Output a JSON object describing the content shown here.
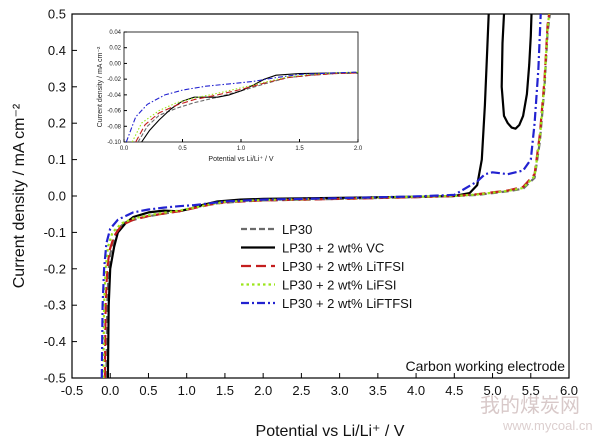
{
  "chart_data": [
    {
      "type": "line",
      "title": "",
      "xlabel": "Potential vs Li/Li⁺ / V",
      "ylabel": "Current density / mA cm⁻²",
      "xlim": [
        -0.5,
        6.0
      ],
      "ylim": [
        -0.5,
        0.5
      ],
      "xticks": [
        "-0.5",
        "0.0",
        "0.5",
        "1.0",
        "1.5",
        "2.0",
        "2.5",
        "3.0",
        "3.5",
        "4.0",
        "4.5",
        "5.0",
        "5.5",
        "6.0"
      ],
      "yticks": [
        "-0.5",
        "-0.4",
        "-0.3",
        "-0.2",
        "-0.1",
        "0.0",
        "0.1",
        "0.2",
        "0.3",
        "0.4",
        "0.5"
      ],
      "legend_position": "center-right",
      "annotation": "Carbon working electrode",
      "series": [
        {
          "name": "LP30",
          "color": "#6b6b6b",
          "dash": "dash",
          "points": [
            [
              -0.05,
              -0.5
            ],
            [
              -0.04,
              -0.3
            ],
            [
              -0.02,
              -0.2
            ],
            [
              0.0,
              -0.16
            ],
            [
              0.05,
              -0.12
            ],
            [
              0.1,
              -0.09
            ],
            [
              0.2,
              -0.072
            ],
            [
              0.4,
              -0.06
            ],
            [
              0.6,
              -0.052
            ],
            [
              0.8,
              -0.045
            ],
            [
              1.0,
              -0.037
            ],
            [
              1.2,
              -0.027
            ],
            [
              1.4,
              -0.02
            ],
            [
              1.7,
              -0.015
            ],
            [
              2.0,
              -0.012
            ],
            [
              3.0,
              -0.008
            ],
            [
              4.0,
              -0.003
            ],
            [
              4.5,
              0.0
            ],
            [
              4.8,
              0.003
            ],
            [
              5.0,
              0.008
            ],
            [
              5.2,
              0.013
            ],
            [
              5.4,
              0.02
            ],
            [
              5.55,
              0.05
            ],
            [
              5.62,
              0.15
            ],
            [
              5.68,
              0.3
            ],
            [
              5.72,
              0.45
            ],
            [
              5.75,
              0.5
            ]
          ]
        },
        {
          "name": "LP30 + 2 wt% VC",
          "color": "#000000",
          "dash": "solid",
          "points": [
            [
              -0.03,
              -0.5
            ],
            [
              -0.02,
              -0.3
            ],
            [
              0.0,
              -0.2
            ],
            [
              0.05,
              -0.14
            ],
            [
              0.1,
              -0.1
            ],
            [
              0.2,
              -0.075
            ],
            [
              0.3,
              -0.058
            ],
            [
              0.5,
              -0.045
            ],
            [
              0.7,
              -0.04
            ],
            [
              0.9,
              -0.042
            ],
            [
              1.05,
              -0.035
            ],
            [
              1.2,
              -0.025
            ],
            [
              1.4,
              -0.015
            ],
            [
              1.7,
              -0.01
            ],
            [
              2.0,
              -0.008
            ],
            [
              3.0,
              -0.005
            ],
            [
              4.0,
              -0.002
            ],
            [
              4.5,
              0.0
            ],
            [
              4.7,
              0.008
            ],
            [
              4.8,
              0.03
            ],
            [
              4.86,
              0.1
            ],
            [
              4.9,
              0.25
            ],
            [
              4.93,
              0.4
            ],
            [
              4.95,
              0.5
            ]
          ]
        },
        {
          "name": "LP30 + 2 wt% VC",
          "color": "#000000",
          "dash": "solid",
          "points": [
            [
              5.15,
              0.5
            ],
            [
              5.13,
              0.42
            ],
            [
              5.12,
              0.3
            ],
            [
              5.15,
              0.22
            ],
            [
              5.2,
              0.2
            ],
            [
              5.25,
              0.188
            ],
            [
              5.3,
              0.185
            ],
            [
              5.35,
              0.195
            ],
            [
              5.4,
              0.22
            ],
            [
              5.45,
              0.28
            ],
            [
              5.48,
              0.36
            ],
            [
              5.5,
              0.44
            ],
            [
              5.51,
              0.5
            ]
          ]
        },
        {
          "name": "LP30 + 2 wt% LiTFSI",
          "color": "#c41e1e",
          "dash": "longdash",
          "points": [
            [
              -0.07,
              -0.5
            ],
            [
              -0.06,
              -0.3
            ],
            [
              -0.04,
              -0.2
            ],
            [
              -0.01,
              -0.15
            ],
            [
              0.05,
              -0.11
            ],
            [
              0.15,
              -0.08
            ],
            [
              0.3,
              -0.065
            ],
            [
              0.5,
              -0.055
            ],
            [
              0.7,
              -0.048
            ],
            [
              0.9,
              -0.042
            ],
            [
              1.1,
              -0.033
            ],
            [
              1.3,
              -0.024
            ],
            [
              1.5,
              -0.017
            ],
            [
              2.0,
              -0.012
            ],
            [
              3.0,
              -0.008
            ],
            [
              4.0,
              -0.003
            ],
            [
              4.5,
              0.0
            ],
            [
              4.8,
              0.005
            ],
            [
              5.0,
              0.01
            ],
            [
              5.2,
              0.015
            ],
            [
              5.4,
              0.025
            ],
            [
              5.55,
              0.06
            ],
            [
              5.62,
              0.17
            ],
            [
              5.68,
              0.32
            ],
            [
              5.72,
              0.47
            ],
            [
              5.74,
              0.5
            ]
          ]
        },
        {
          "name": "LP30 + 2 wt% LiFSI",
          "color": "#9be51a",
          "dash": "dot",
          "points": [
            [
              -0.09,
              -0.5
            ],
            [
              -0.08,
              -0.3
            ],
            [
              -0.06,
              -0.2
            ],
            [
              -0.03,
              -0.14
            ],
            [
              0.03,
              -0.1
            ],
            [
              0.15,
              -0.075
            ],
            [
              0.3,
              -0.062
            ],
            [
              0.5,
              -0.053
            ],
            [
              0.7,
              -0.046
            ],
            [
              0.9,
              -0.04
            ],
            [
              1.1,
              -0.032
            ],
            [
              1.3,
              -0.023
            ],
            [
              1.5,
              -0.016
            ],
            [
              2.0,
              -0.011
            ],
            [
              3.0,
              -0.007
            ],
            [
              4.0,
              -0.002
            ],
            [
              4.5,
              0.0
            ],
            [
              4.8,
              0.004
            ],
            [
              5.0,
              0.009
            ],
            [
              5.2,
              0.014
            ],
            [
              5.4,
              0.022
            ],
            [
              5.55,
              0.055
            ],
            [
              5.62,
              0.16
            ],
            [
              5.68,
              0.31
            ],
            [
              5.72,
              0.46
            ],
            [
              5.74,
              0.5
            ]
          ]
        },
        {
          "name": "LP30 + 2 wt% LiFTFSI",
          "color": "#2222d0",
          "dash": "dashdot",
          "points": [
            [
              -0.11,
              -0.5
            ],
            [
              -0.1,
              -0.3
            ],
            [
              -0.08,
              -0.2
            ],
            [
              -0.05,
              -0.13
            ],
            [
              0.0,
              -0.09
            ],
            [
              0.1,
              -0.065
            ],
            [
              0.3,
              -0.045
            ],
            [
              0.5,
              -0.037
            ],
            [
              0.7,
              -0.032
            ],
            [
              0.9,
              -0.028
            ],
            [
              1.1,
              -0.025
            ],
            [
              1.3,
              -0.02
            ],
            [
              1.5,
              -0.015
            ],
            [
              2.0,
              -0.01
            ],
            [
              3.0,
              -0.006
            ],
            [
              4.0,
              -0.001
            ],
            [
              4.5,
              0.003
            ],
            [
              4.8,
              0.04
            ],
            [
              4.9,
              0.06
            ],
            [
              5.0,
              0.065
            ],
            [
              5.2,
              0.06
            ],
            [
              5.4,
              0.07
            ],
            [
              5.5,
              0.1
            ],
            [
              5.55,
              0.2
            ],
            [
              5.6,
              0.35
            ],
            [
              5.63,
              0.5
            ]
          ]
        }
      ]
    },
    {
      "type": "line",
      "title": "",
      "xlabel": "Potential vs Li/Li⁺ / V",
      "ylabel": "Current density / mA cm⁻²",
      "xlim": [
        0.0,
        2.0
      ],
      "ylim": [
        -0.1,
        0.04
      ],
      "xticks": [
        "0.0",
        "0.5",
        "1.0",
        "1.5",
        "2.0"
      ],
      "yticks": [
        "-0.10",
        "-0.08",
        "-0.06",
        "-0.04",
        "-0.02",
        "0.00",
        "0.02",
        "0.04"
      ],
      "series": [
        {
          "name": "LP30",
          "color": "#6b6b6b",
          "dash": "dash",
          "points": [
            [
              0.12,
              -0.1
            ],
            [
              0.2,
              -0.08
            ],
            [
              0.3,
              -0.066
            ],
            [
              0.45,
              -0.057
            ],
            [
              0.6,
              -0.05
            ],
            [
              0.8,
              -0.043
            ],
            [
              1.0,
              -0.035
            ],
            [
              1.2,
              -0.026
            ],
            [
              1.4,
              -0.018
            ],
            [
              1.6,
              -0.015
            ],
            [
              1.8,
              -0.013
            ],
            [
              2.0,
              -0.012
            ]
          ]
        },
        {
          "name": "LP30 + 2 wt% VC",
          "color": "#000000",
          "dash": "solid",
          "points": [
            [
              0.15,
              -0.1
            ],
            [
              0.22,
              -0.085
            ],
            [
              0.3,
              -0.072
            ],
            [
              0.4,
              -0.058
            ],
            [
              0.5,
              -0.048
            ],
            [
              0.6,
              -0.043
            ],
            [
              0.7,
              -0.043
            ],
            [
              0.8,
              -0.043
            ],
            [
              0.9,
              -0.04
            ],
            [
              1.0,
              -0.035
            ],
            [
              1.1,
              -0.028
            ],
            [
              1.2,
              -0.02
            ],
            [
              1.3,
              -0.015
            ],
            [
              1.5,
              -0.013
            ],
            [
              1.8,
              -0.012
            ],
            [
              2.0,
              -0.012
            ]
          ]
        },
        {
          "name": "LP30 + 2 wt% LiTFSI",
          "color": "#c41e1e",
          "dash": "longdash",
          "points": [
            [
              0.1,
              -0.1
            ],
            [
              0.18,
              -0.078
            ],
            [
              0.3,
              -0.063
            ],
            [
              0.45,
              -0.053
            ],
            [
              0.6,
              -0.046
            ],
            [
              0.8,
              -0.04
            ],
            [
              1.0,
              -0.033
            ],
            [
              1.2,
              -0.025
            ],
            [
              1.4,
              -0.018
            ],
            [
              1.6,
              -0.015
            ],
            [
              1.8,
              -0.013
            ],
            [
              2.0,
              -0.012
            ]
          ]
        },
        {
          "name": "LP30 + 2 wt% LiFSI",
          "color": "#9be51a",
          "dash": "dot",
          "points": [
            [
              0.07,
              -0.1
            ],
            [
              0.15,
              -0.076
            ],
            [
              0.3,
              -0.06
            ],
            [
              0.45,
              -0.05
            ],
            [
              0.6,
              -0.044
            ],
            [
              0.8,
              -0.038
            ],
            [
              1.0,
              -0.031
            ],
            [
              1.2,
              -0.024
            ],
            [
              1.4,
              -0.017
            ],
            [
              1.6,
              -0.014
            ],
            [
              1.8,
              -0.012
            ],
            [
              2.0,
              -0.011
            ]
          ]
        },
        {
          "name": "LP30 + 2 wt% LiFTFSI",
          "color": "#2222d0",
          "dash": "dashdot",
          "points": [
            [
              0.02,
              -0.1
            ],
            [
              0.1,
              -0.068
            ],
            [
              0.2,
              -0.052
            ],
            [
              0.35,
              -0.04
            ],
            [
              0.5,
              -0.034
            ],
            [
              0.7,
              -0.029
            ],
            [
              0.9,
              -0.026
            ],
            [
              1.1,
              -0.023
            ],
            [
              1.3,
              -0.018
            ],
            [
              1.5,
              -0.014
            ],
            [
              1.8,
              -0.012
            ],
            [
              2.0,
              -0.011
            ]
          ]
        }
      ]
    }
  ],
  "watermark": {
    "text": "我的煤炭网",
    "url": "www.mycoal.cn"
  }
}
